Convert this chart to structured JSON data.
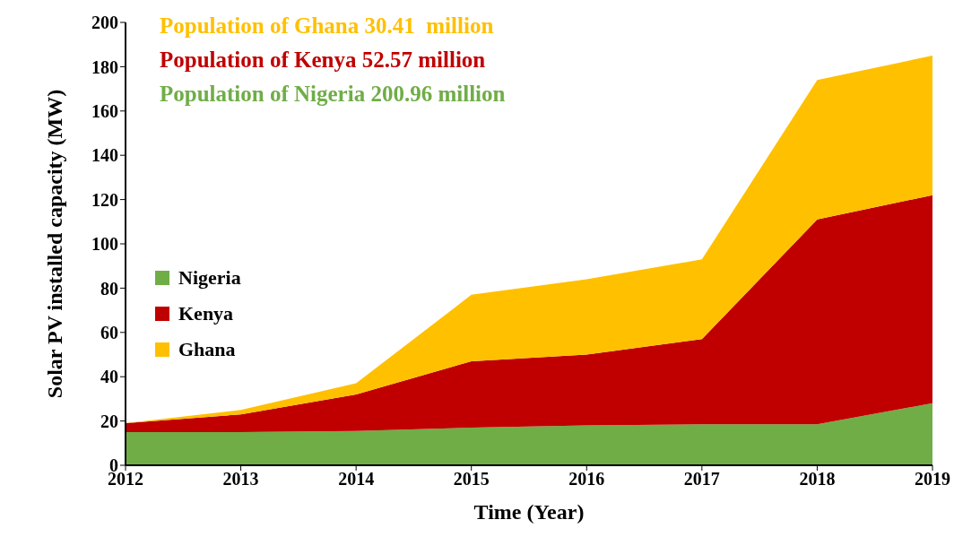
{
  "chart_data": {
    "type": "area",
    "stacked": true,
    "xlabel": "Time (Year)",
    "ylabel": "Solar PV installed capacity (MW)",
    "x": [
      2012,
      2013,
      2014,
      2015,
      2016,
      2017,
      2018,
      2019
    ],
    "xlim": [
      2012,
      2019
    ],
    "xticks": [
      2012,
      2013,
      2014,
      2015,
      2016,
      2017,
      2018,
      2019
    ],
    "ylim": [
      0,
      200
    ],
    "yticks": [
      0,
      20,
      40,
      60,
      80,
      100,
      120,
      140,
      160,
      180,
      200
    ],
    "grid": false,
    "legend": "left",
    "series": [
      {
        "name": "Nigeria",
        "color": "#70ad47",
        "values": [
          15,
          15,
          15.5,
          17,
          18,
          18.5,
          18.5,
          28
        ]
      },
      {
        "name": "Kenya",
        "color": "#c00000",
        "values": [
          4,
          8,
          16.5,
          30,
          32,
          38.5,
          92.5,
          94
        ]
      },
      {
        "name": "Ghana",
        "color": "#ffc000",
        "values": [
          0,
          2,
          5,
          30,
          34,
          36,
          63,
          63
        ]
      }
    ],
    "annotations": [
      "Population of Ghana 30.41  million",
      "Population of Kenya 52.57 million",
      "Population of Nigeria 200.96 million"
    ]
  }
}
